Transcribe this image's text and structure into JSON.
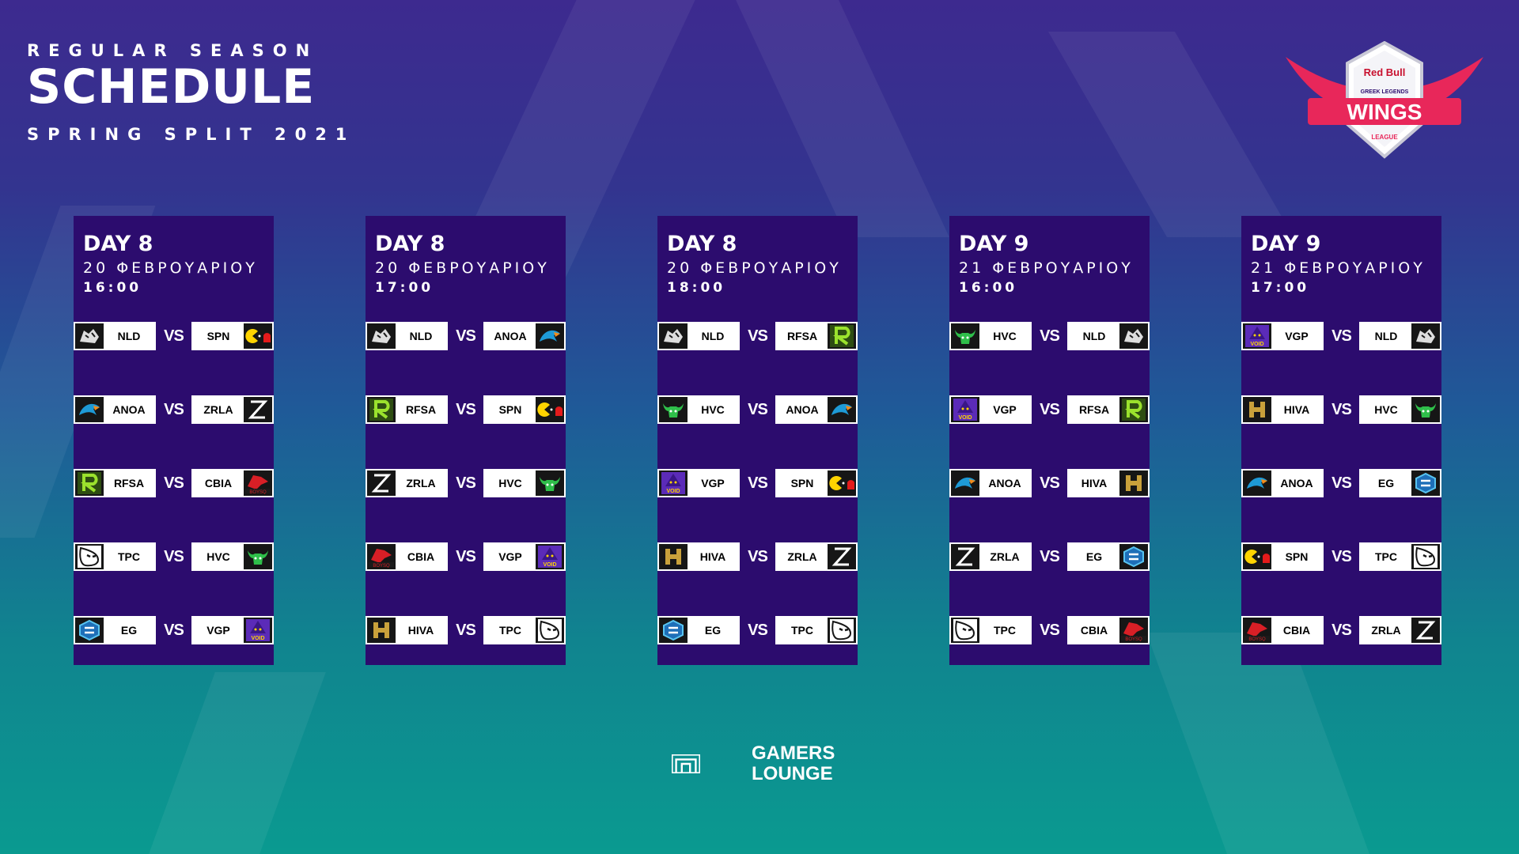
{
  "header": {
    "kicker": "REGULAR SEASON",
    "title": "SCHEDULE",
    "subtitle": "SPRING SPLIT 2021"
  },
  "brand": {
    "logo_line1": "Red Bull",
    "logo_line2": "GREEK LEGENDS",
    "logo_line3": "WINGS",
    "logo_line4": "LEAGUE",
    "footer_line1": "GAMERS",
    "footer_line2": "LOUNGE"
  },
  "colors": {
    "panel": "#2c0c6e",
    "accent": "#e8275a"
  },
  "days": [
    {
      "day": "DAY 8",
      "date": "20 ΦΕΒΡΟΥΑΡΙΟΥ",
      "time": "16:00",
      "matches": [
        {
          "home": "NLD",
          "away": "SPN"
        },
        {
          "home": "ANOA",
          "away": "ZRLA"
        },
        {
          "home": "RFSA",
          "away": "CBIA"
        },
        {
          "home": "TPC",
          "away": "HVC"
        },
        {
          "home": "EG",
          "away": "VGP"
        }
      ]
    },
    {
      "day": "DAY 8",
      "date": "20 ΦΕΒΡΟΥΑΡΙΟΥ",
      "time": "17:00",
      "matches": [
        {
          "home": "NLD",
          "away": "ANOA"
        },
        {
          "home": "RFSA",
          "away": "SPN"
        },
        {
          "home": "ZRLA",
          "away": "HVC"
        },
        {
          "home": "CBIA",
          "away": "VGP"
        },
        {
          "home": "HIVA",
          "away": "TPC"
        }
      ]
    },
    {
      "day": "DAY 8",
      "date": "20 ΦΕΒΡΟΥΑΡΙΟΥ",
      "time": "18:00",
      "matches": [
        {
          "home": "NLD",
          "away": "RFSA"
        },
        {
          "home": "HVC",
          "away": "ANOA"
        },
        {
          "home": "VGP",
          "away": "SPN"
        },
        {
          "home": "HIVA",
          "away": "ZRLA"
        },
        {
          "home": "EG",
          "away": "TPC"
        }
      ]
    },
    {
      "day": "DAY 9",
      "date": "21 ΦΕΒΡΟΥΑΡΙΟΥ",
      "time": "16:00",
      "matches": [
        {
          "home": "HVC",
          "away": "NLD"
        },
        {
          "home": "VGP",
          "away": "RFSA"
        },
        {
          "home": "ANOA",
          "away": "HIVA"
        },
        {
          "home": "ZRLA",
          "away": "EG"
        },
        {
          "home": "TPC",
          "away": "CBIA"
        }
      ]
    },
    {
      "day": "DAY 9",
      "date": "21 ΦΕΒΡΟΥΑΡΙΟΥ",
      "time": "17:00",
      "matches": [
        {
          "home": "VGP",
          "away": "NLD"
        },
        {
          "home": "HIVA",
          "away": "HVC"
        },
        {
          "home": "ANOA",
          "away": "EG"
        },
        {
          "home": "SPN",
          "away": "TPC"
        },
        {
          "home": "CBIA",
          "away": "ZRLA"
        }
      ]
    }
  ],
  "vs_label": "VS",
  "team_icons": {
    "NLD": "tiger-icon",
    "SPN": "pacman-icon",
    "ANOA": "eagle-icon",
    "ZRLA": "z-slash-icon",
    "RFSA": "r-letter-icon",
    "CBIA": "dragon-icon",
    "TPC": "mask-icon",
    "HVC": "bull-icon",
    "EG": "eg-shield-icon",
    "VGP": "void-hood-icon",
    "HIVA": "h-gold-icon"
  }
}
